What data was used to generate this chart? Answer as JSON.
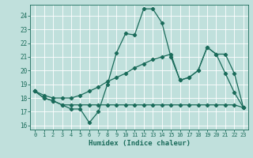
{
  "bg_color": "#c0e0dc",
  "grid_color": "#ffffff",
  "line_color": "#1a6b5a",
  "xlabel": "Humidex (Indice chaleur)",
  "xlim": [
    -0.5,
    23.5
  ],
  "ylim": [
    15.7,
    24.8
  ],
  "yticks": [
    16,
    17,
    18,
    19,
    20,
    21,
    22,
    23,
    24
  ],
  "xticks": [
    0,
    1,
    2,
    3,
    4,
    5,
    6,
    7,
    8,
    9,
    10,
    11,
    12,
    13,
    14,
    15,
    16,
    17,
    18,
    19,
    20,
    21,
    22,
    23
  ],
  "curve1_x": [
    0,
    1,
    2,
    3,
    4,
    5,
    6,
    7,
    8,
    9,
    10,
    11,
    12,
    13,
    14,
    15,
    16,
    17,
    18,
    19,
    20,
    21,
    22,
    23
  ],
  "curve1_y": [
    18.5,
    18.0,
    17.8,
    17.5,
    17.2,
    17.2,
    16.2,
    17.0,
    19.0,
    21.3,
    22.7,
    22.6,
    24.5,
    24.5,
    23.5,
    21.0,
    19.3,
    19.5,
    20.0,
    21.7,
    21.2,
    19.8,
    18.4,
    17.3
  ],
  "curve2_x": [
    0,
    1,
    2,
    3,
    4,
    5,
    6,
    7,
    8,
    9,
    10,
    11,
    12,
    13,
    14,
    15,
    16,
    17,
    18,
    19,
    20,
    21,
    22,
    23
  ],
  "curve2_y": [
    18.5,
    18.0,
    17.8,
    17.5,
    17.5,
    17.5,
    17.5,
    17.5,
    17.5,
    17.5,
    17.5,
    17.5,
    17.5,
    17.5,
    17.5,
    17.5,
    17.5,
    17.5,
    17.5,
    17.5,
    17.5,
    17.5,
    17.5,
    17.3
  ],
  "curve3_x": [
    0,
    1,
    2,
    3,
    4,
    5,
    6,
    7,
    8,
    9,
    10,
    11,
    12,
    13,
    14,
    15,
    16,
    17,
    18,
    19,
    20,
    21,
    22,
    23
  ],
  "curve3_y": [
    18.5,
    18.2,
    18.0,
    18.0,
    18.0,
    18.2,
    18.5,
    18.8,
    19.2,
    19.5,
    19.8,
    20.2,
    20.5,
    20.8,
    21.0,
    21.2,
    19.3,
    19.5,
    20.0,
    21.7,
    21.2,
    21.2,
    19.8,
    17.3
  ]
}
